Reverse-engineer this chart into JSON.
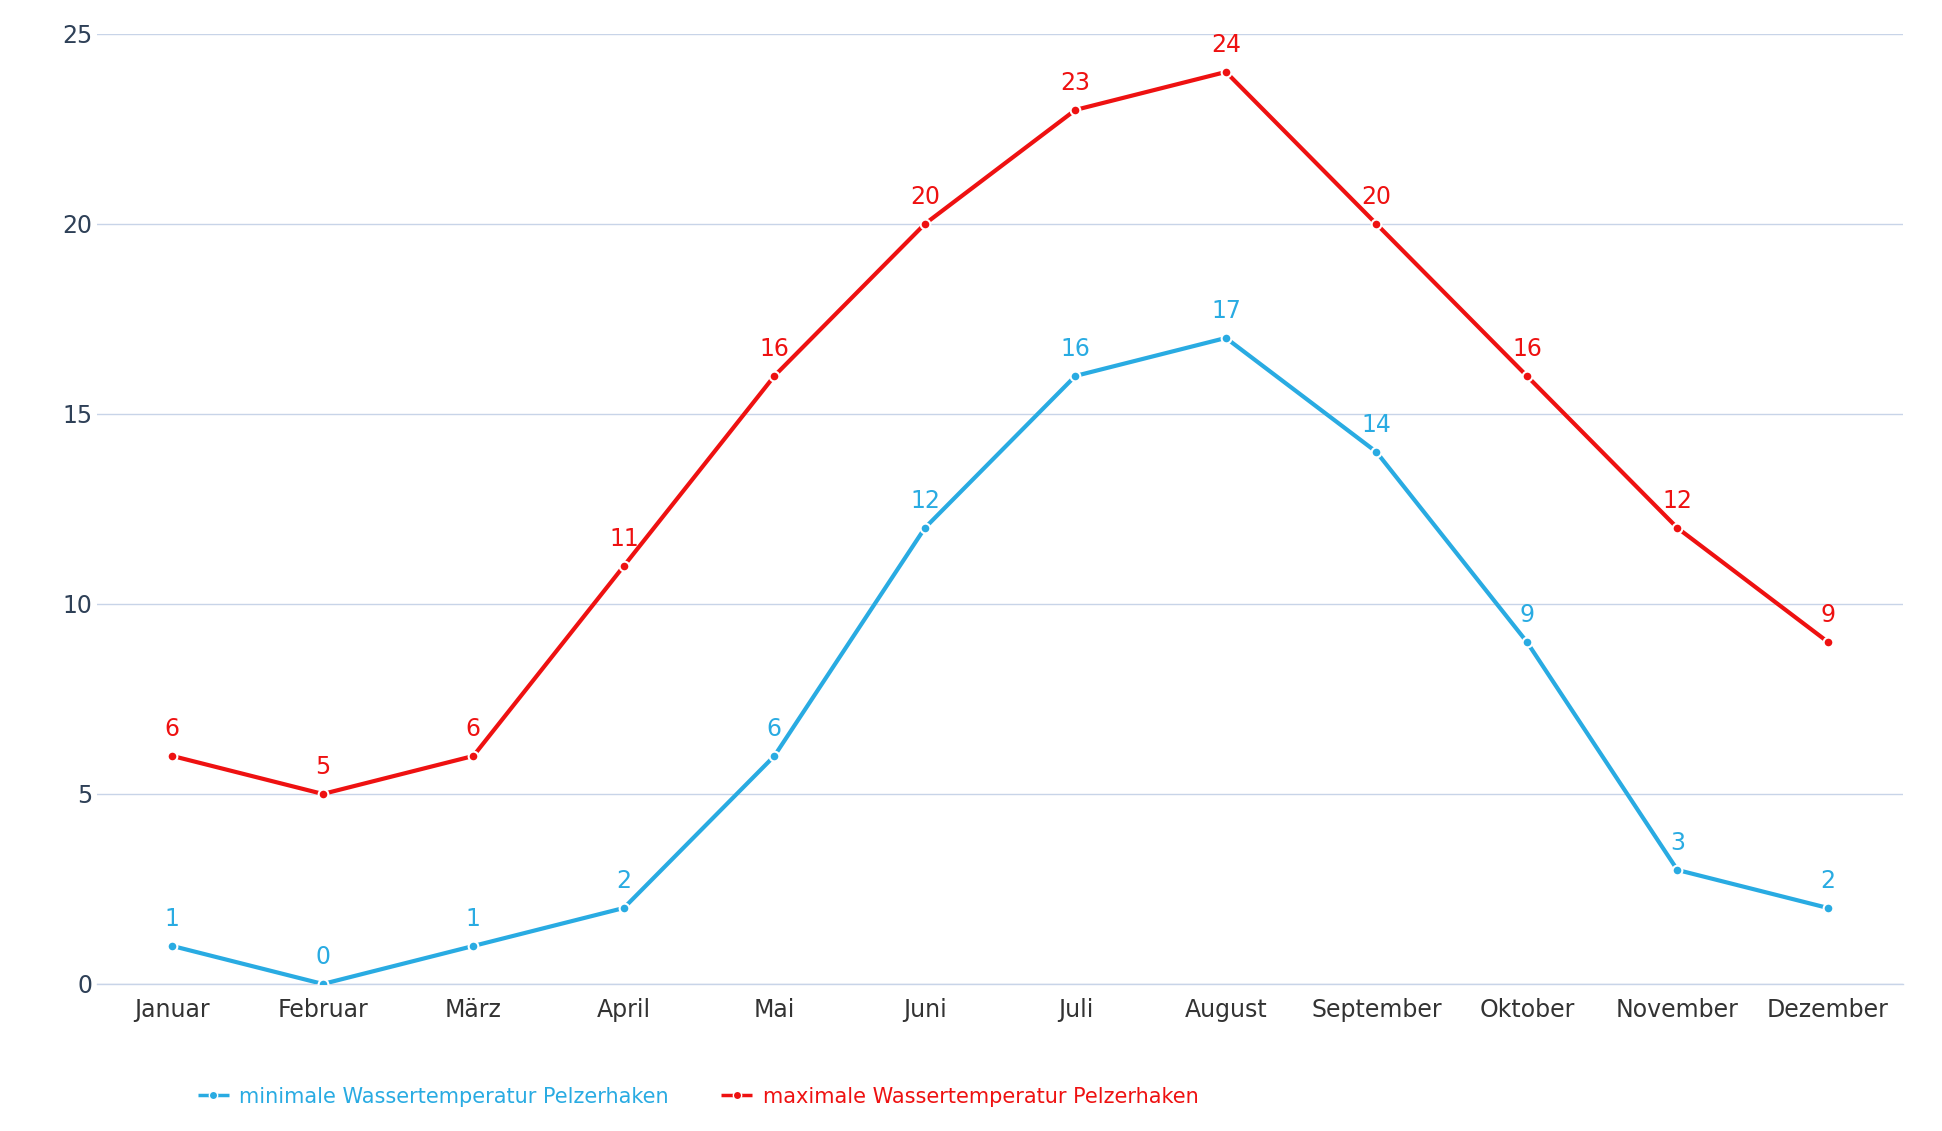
{
  "months": [
    "Januar",
    "Februar",
    "März",
    "April",
    "Mai",
    "Juni",
    "Juli",
    "August",
    "September",
    "Oktober",
    "November",
    "Dezember"
  ],
  "min_temps": [
    1,
    0,
    1,
    2,
    6,
    12,
    16,
    17,
    14,
    9,
    3,
    2
  ],
  "max_temps": [
    6,
    5,
    6,
    11,
    16,
    20,
    23,
    24,
    20,
    16,
    12,
    9
  ],
  "min_color": "#29ABE2",
  "max_color": "#EE1111",
  "ytick_color": "#2E4057",
  "xtick_color": "#333333",
  "grid_color": "#C8D4E8",
  "bg_color": "#FFFFFF",
  "ylim": [
    0,
    25
  ],
  "yticks": [
    0,
    5,
    10,
    15,
    20,
    25
  ],
  "legend_min": "minimale Wassertemperatur Pelzerhaken",
  "legend_max": "maximale Wassertemperatur Pelzerhaken",
  "label_fontsize": 17,
  "tick_fontsize": 17,
  "legend_fontsize": 15,
  "line_width": 3.0,
  "marker_size": 7
}
